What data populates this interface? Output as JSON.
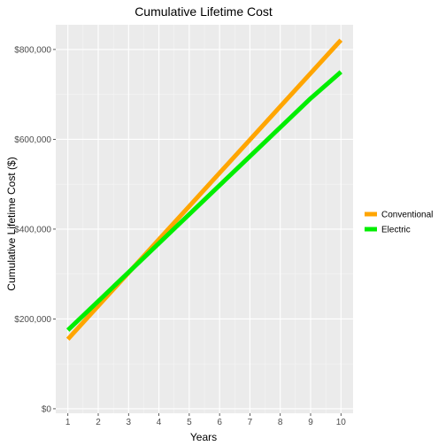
{
  "chart_data": {
    "type": "line",
    "title": "Cumulative Lifetime Cost",
    "xlabel": "Years",
    "ylabel": "Cumulative Lifetime Cost ($)",
    "x": [
      1,
      2,
      3,
      4,
      5,
      6,
      7,
      8,
      9,
      10
    ],
    "x_ticks": [
      "1",
      "2",
      "3",
      "4",
      "5",
      "6",
      "7",
      "8",
      "9",
      "10"
    ],
    "xlim": [
      0.6,
      10.4
    ],
    "ylim": [
      -10000,
      855000
    ],
    "y_ticks": [
      {
        "value": 0,
        "label": "$0"
      },
      {
        "value": 200000,
        "label": "$200,000"
      },
      {
        "value": 400000,
        "label": "$400,000"
      },
      {
        "value": 600000,
        "label": "$600,000"
      },
      {
        "value": 800000,
        "label": "$800,000"
      }
    ],
    "grid": true,
    "legend_position": "right",
    "series": [
      {
        "name": "Conventional",
        "color": "#FFA500",
        "values": [
          155000,
          229000,
          303000,
          377000,
          451000,
          525000,
          599000,
          673000,
          747000,
          821000
        ]
      },
      {
        "name": "Electric",
        "color": "#00EE00",
        "values": [
          175000,
          239500,
          304000,
          368500,
          433000,
          497500,
          562000,
          626500,
          691000,
          750000
        ]
      }
    ]
  }
}
